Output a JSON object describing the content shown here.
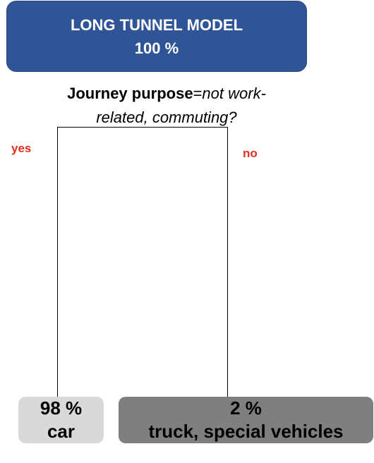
{
  "root": {
    "title": "LONG TUNNEL MODEL",
    "share": "100 %",
    "color": "#2f5597"
  },
  "split": {
    "variable": "Journey purpose",
    "operator": "=",
    "condition_line1": "not work-",
    "condition_line2": "related, commuting?"
  },
  "branches": {
    "yes_label": "yes",
    "no_label": "no",
    "label_color": "#e0301e"
  },
  "leaves": {
    "yes": {
      "share": "98 %",
      "label": "car",
      "color": "#d9d9d9"
    },
    "no": {
      "share": "2 %",
      "label": "truck, special vehicles",
      "color": "#7f7f7f"
    }
  }
}
